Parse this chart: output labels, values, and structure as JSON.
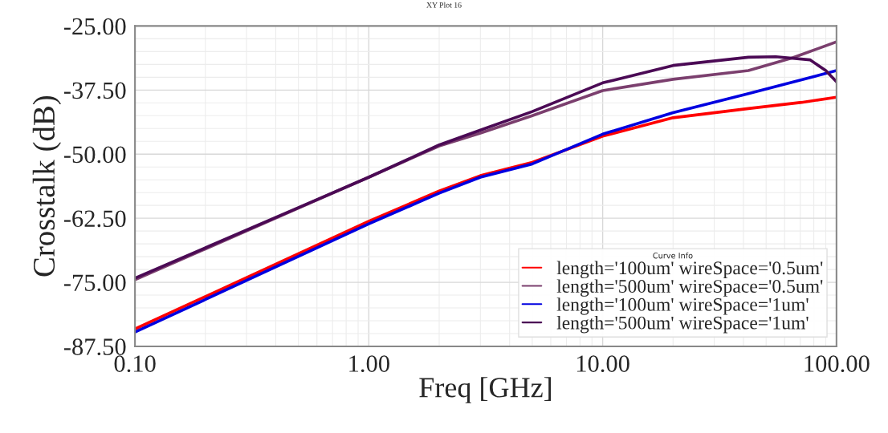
{
  "chart_data": {
    "type": "line",
    "title": "XY Plot 16",
    "xlabel": "Freq [GHz]",
    "ylabel": "Crosstalk (dB)",
    "legend_title": "Curve Info",
    "log": "x",
    "grid": true,
    "legend": "bottom right",
    "line_style": "solid",
    "xlim": [
      0.1,
      100
    ],
    "xticks": [
      {
        "value": 0.1,
        "label": "0.10"
      },
      {
        "value": 1,
        "label": "1.00"
      },
      {
        "value": 10,
        "label": "10.00"
      },
      {
        "value": 100,
        "label": "100.00"
      }
    ],
    "ylim": [
      -87.5,
      -25
    ],
    "yticks": [
      {
        "value": -87.5,
        "label": "-87.50"
      },
      {
        "value": -75,
        "label": "-75.00"
      },
      {
        "value": -62.5,
        "label": "-62.50"
      },
      {
        "value": -50,
        "label": "-50.00"
      },
      {
        "value": -37.5,
        "label": "-37.50"
      },
      {
        "value": -25,
        "label": "-25.00"
      }
    ],
    "series": [
      {
        "name": "length='100um' wireSpace='0.5um'",
        "color": "#ff0000",
        "x": [
          0.1,
          1,
          2,
          3,
          5,
          10,
          20,
          42,
          71,
          100
        ],
        "values": [
          -84.1,
          -63.1,
          -57.2,
          -54.2,
          -51.6,
          -46.5,
          -42.9,
          -41.1,
          -39.9,
          -38.9
        ]
      },
      {
        "name": "length='500um' wireSpace='0.5um'",
        "color": "#7b3f6e",
        "x": [
          0.1,
          1,
          2,
          3,
          5,
          10,
          20,
          42,
          65,
          100
        ],
        "values": [
          -74.5,
          -54.5,
          -48.4,
          -45.9,
          -42.5,
          -37.6,
          -35.4,
          -33.7,
          -31.2,
          -28.1
        ]
      },
      {
        "name": "length='100um' wireSpace='1um'",
        "color": "#0000e0",
        "x": [
          0.1,
          1,
          2,
          3,
          5,
          10,
          20,
          42,
          100
        ],
        "values": [
          -84.7,
          -63.6,
          -57.6,
          -54.5,
          -51.9,
          -46.1,
          -41.9,
          -38.2,
          -33.7
        ]
      },
      {
        "name": "length='500um' wireSpace='1um'",
        "color": "#4b0a55",
        "x": [
          0.1,
          1,
          2,
          3,
          5,
          10,
          20,
          42,
          55,
          77,
          90,
          100
        ],
        "values": [
          -74.2,
          -54.5,
          -48.2,
          -45.3,
          -41.7,
          -36.1,
          -32.7,
          -31.1,
          -31.0,
          -31.6,
          -33.7,
          -35.9
        ]
      }
    ]
  }
}
